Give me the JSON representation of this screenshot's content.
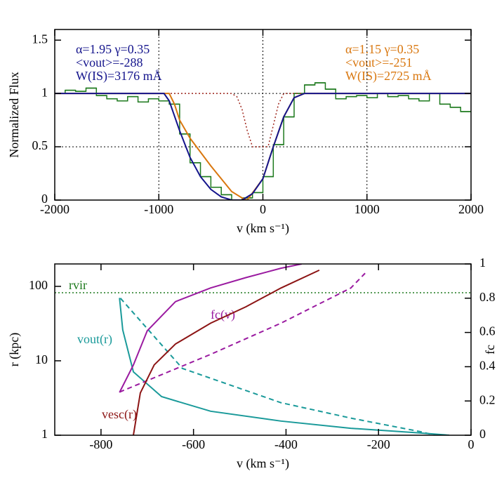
{
  "chart_data": [
    {
      "type": "line",
      "xlabel": "v (km s⁻¹)",
      "ylabel": "Normalized Flux",
      "xlim": [
        -2000,
        2000
      ],
      "ylim": [
        0,
        1.6
      ],
      "xticks": [
        -2000,
        -1000,
        0,
        1000,
        2000
      ],
      "yticks": [
        0,
        0.5,
        1,
        1.5
      ],
      "hlines": [
        0.5,
        1
      ],
      "vlines": [
        -1000,
        0,
        1000
      ],
      "annotations": [
        "α=1.95 γ=0.35",
        "<vout>=-288",
        "W(IS)=3176 mÅ",
        "α=1.15 γ=0.35",
        "<vout>=-251",
        "W(IS)=2725 mÅ"
      ],
      "series": [
        {
          "style": "step",
          "color": "#1e7a1e",
          "x": [
            -2000,
            -1900,
            -1800,
            -1700,
            -1600,
            -1500,
            -1400,
            -1300,
            -1200,
            -1100,
            -1000,
            -900,
            -800,
            -700,
            -600,
            -500,
            -400,
            -300,
            -200,
            -100,
            0,
            100,
            200,
            300,
            400,
            500,
            600,
            700,
            800,
            900,
            1000,
            1100,
            1200,
            1300,
            1400,
            1500,
            1600,
            1700,
            1800,
            1900
          ],
          "values": [
            1.0,
            1.03,
            1.02,
            1.05,
            0.98,
            0.95,
            0.93,
            0.97,
            0.92,
            0.95,
            0.93,
            0.9,
            0.62,
            0.35,
            0.22,
            0.12,
            0.05,
            0.0,
            0.02,
            0.07,
            0.22,
            0.52,
            0.78,
            1.0,
            1.08,
            1.1,
            1.04,
            0.95,
            0.97,
            0.98,
            0.96,
            1.0,
            0.97,
            0.98,
            0.95,
            0.93,
            1.0,
            0.9,
            0.87,
            0.83
          ]
        },
        {
          "style": "dotted",
          "color": "#a0281e",
          "x": [
            -2000,
            -300,
            -250,
            -200,
            -150,
            -100,
            50,
            100,
            150,
            200,
            2000
          ],
          "values": [
            1,
            1,
            0.97,
            0.85,
            0.65,
            0.5,
            0.5,
            0.7,
            0.9,
            1,
            1
          ]
        },
        {
          "style": "solid",
          "color": "#d9770f",
          "x": [
            -2000,
            -900,
            -850,
            -800,
            -700,
            -600,
            -500,
            -400,
            -300,
            -200,
            -150,
            0,
            100,
            200,
            300,
            400,
            2000
          ],
          "values": [
            1,
            1,
            0.9,
            0.75,
            0.58,
            0.45,
            0.32,
            0.2,
            0.08,
            0.02,
            0,
            0.2,
            0.5,
            0.78,
            0.96,
            1,
            1
          ]
        },
        {
          "style": "solid",
          "color": "#14148c",
          "x": [
            -2000,
            -950,
            -900,
            -800,
            -700,
            -600,
            -500,
            -400,
            -300,
            -200,
            -100,
            0,
            100,
            200,
            300,
            400,
            2000
          ],
          "values": [
            1,
            1,
            0.93,
            0.65,
            0.4,
            0.22,
            0.1,
            0.03,
            0,
            0,
            0.06,
            0.2,
            0.5,
            0.78,
            0.96,
            1,
            1
          ]
        }
      ]
    },
    {
      "type": "line",
      "xlabel": "v (km s⁻¹)",
      "ylabel": "r (kpc)",
      "y2label": "fc",
      "xlim": [
        -900,
        0
      ],
      "ylim": [
        1,
        200
      ],
      "ylog": true,
      "y2lim": [
        0,
        1
      ],
      "xticks": [
        -800,
        -600,
        -400,
        -200,
        0
      ],
      "yticks": [
        1,
        10,
        100
      ],
      "y2ticks": [
        0,
        0.2,
        0.4,
        0.6,
        0.8,
        1
      ],
      "hline": {
        "value": 82,
        "label": "rvir",
        "color": "#1e7a1e"
      },
      "series": [
        {
          "name": "vout(r)",
          "style": "solid",
          "color": "#1a9a9a",
          "x": [
            -760,
            -753,
            -730,
            -669,
            -563,
            -411,
            -260,
            -108,
            -47
          ],
          "values": [
            70,
            26,
            7.1,
            3.3,
            2.1,
            1.55,
            1.24,
            1.07,
            1
          ]
        },
        {
          "style": "dashed",
          "color": "#1a9a9a",
          "axis": "y2",
          "x": [
            -758,
            -624,
            -411,
            -260,
            -108,
            -78
          ],
          "values": [
            0.8,
            0.39,
            0.19,
            0.1,
            0.02,
            0
          ]
        },
        {
          "name": "fc(v)",
          "style": "solid",
          "color": "#9a1aa0",
          "axis": "y2",
          "x": [
            -760,
            -730,
            -700,
            -639,
            -563,
            -487,
            -411,
            -366
          ],
          "values": [
            0.25,
            0.41,
            0.61,
            0.78,
            0.86,
            0.92,
            0.975,
            1.0
          ]
        },
        {
          "style": "dashed",
          "color": "#9a1aa0",
          "x": [
            -760,
            -563,
            -411,
            -260,
            -229
          ],
          "values": [
            3.8,
            12.2,
            32,
            95,
            150
          ]
        },
        {
          "name": "vesc(r)",
          "style": "solid",
          "color": "#8c1414",
          "x": [
            -730,
            -715,
            -685,
            -639,
            -563,
            -487,
            -411,
            -328
          ],
          "values": [
            1,
            3.7,
            8.8,
            16.8,
            32,
            53,
            95,
            165
          ]
        }
      ]
    }
  ]
}
